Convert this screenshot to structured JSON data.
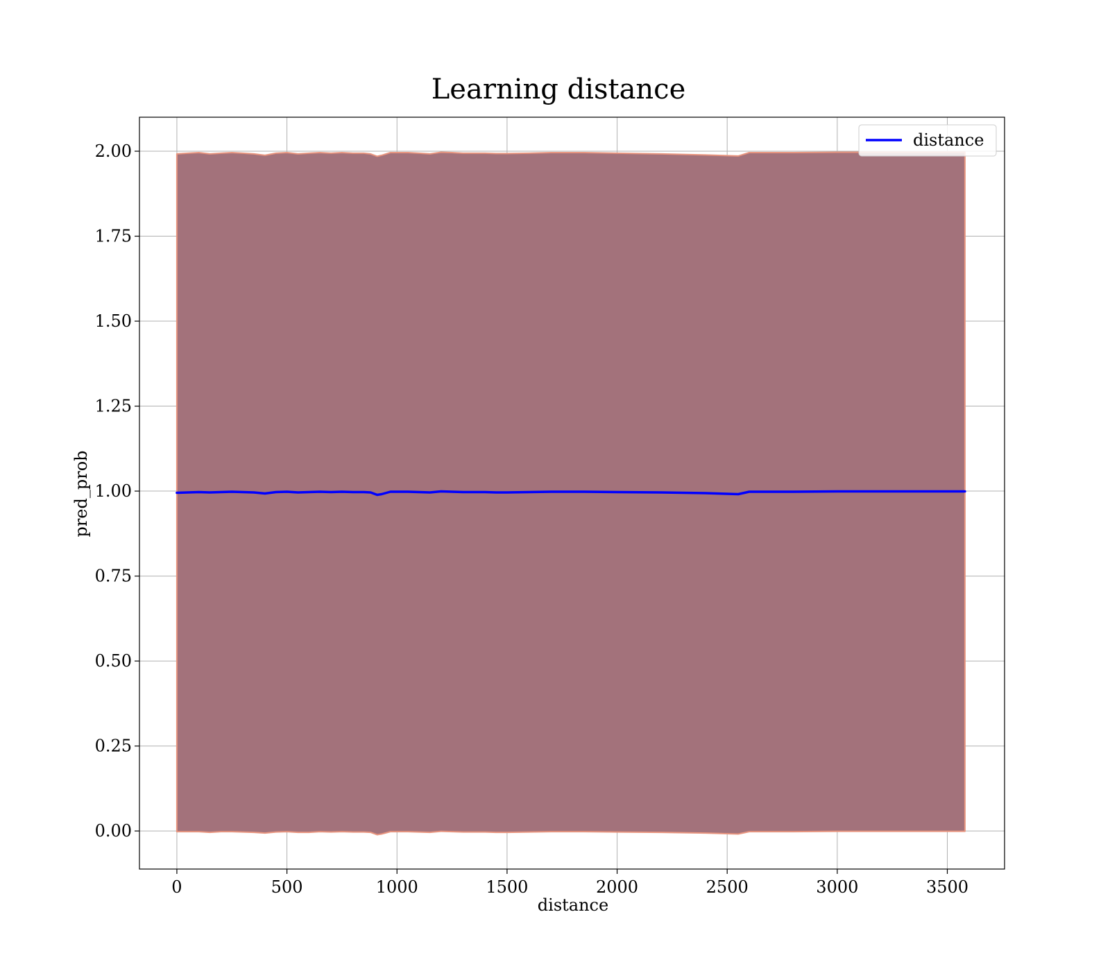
{
  "chart_data": {
    "type": "line",
    "title": "Learning distance",
    "xlabel": "distance",
    "ylabel": "pred_prob",
    "xlim": [
      -170,
      3760
    ],
    "ylim": [
      -0.112,
      2.1
    ],
    "xticks": [
      0,
      500,
      1000,
      1500,
      2000,
      2500,
      3000,
      3500
    ],
    "xtick_labels": [
      "0",
      "500",
      "1000",
      "1500",
      "2000",
      "2500",
      "3000",
      "3500"
    ],
    "yticks": [
      0,
      0.25,
      0.5,
      0.75,
      1.0,
      1.25,
      1.5,
      1.75,
      2.0
    ],
    "ytick_labels": [
      "0.00",
      "0.25",
      "0.50",
      "0.75",
      "1.00",
      "1.25",
      "1.50",
      "1.75",
      "2.00"
    ],
    "grid": true,
    "legend": {
      "placement": "upper right",
      "entries": [
        "distance"
      ]
    },
    "colors": {
      "line": "#0000ff",
      "band_fill": "#a3727b",
      "band_edge": "#e8957f",
      "grid": "#b0b0b0",
      "axes": "#000000"
    },
    "series": [
      {
        "name": "distance",
        "x": [
          0,
          50,
          100,
          150,
          200,
          250,
          300,
          350,
          400,
          450,
          500,
          550,
          600,
          650,
          700,
          750,
          800,
          850,
          880,
          910,
          930,
          970,
          1000,
          1050,
          1100,
          1150,
          1200,
          1250,
          1300,
          1350,
          1400,
          1450,
          1500,
          1600,
          1700,
          1800,
          1850,
          2000,
          2200,
          2400,
          2550,
          2600,
          2800,
          3000,
          3200,
          3400,
          3580
        ],
        "y": [
          0.995,
          0.996,
          0.997,
          0.996,
          0.997,
          0.998,
          0.997,
          0.996,
          0.993,
          0.997,
          0.998,
          0.996,
          0.997,
          0.998,
          0.997,
          0.998,
          0.997,
          0.997,
          0.996,
          0.989,
          0.991,
          0.998,
          0.998,
          0.998,
          0.997,
          0.996,
          0.999,
          0.998,
          0.997,
          0.997,
          0.997,
          0.996,
          0.996,
          0.997,
          0.998,
          0.998,
          0.998,
          0.997,
          0.996,
          0.994,
          0.991,
          0.998,
          0.998,
          0.999,
          0.999,
          0.999,
          0.999
        ],
        "band_lower": [
          -0.002,
          -0.002,
          -0.002,
          -0.004,
          -0.002,
          -0.002,
          -0.003,
          -0.004,
          -0.006,
          -0.003,
          -0.002,
          -0.004,
          -0.004,
          -0.002,
          -0.003,
          -0.002,
          -0.003,
          -0.003,
          -0.004,
          -0.011,
          -0.009,
          -0.002,
          -0.002,
          -0.002,
          -0.003,
          -0.004,
          -0.001,
          -0.002,
          -0.003,
          -0.003,
          -0.003,
          -0.004,
          -0.004,
          -0.003,
          -0.002,
          -0.002,
          -0.002,
          -0.003,
          -0.004,
          -0.006,
          -0.009,
          -0.002,
          -0.002,
          -0.001,
          -0.001,
          -0.001,
          -0.001
        ],
        "band_upper": [
          1.992,
          1.994,
          1.996,
          1.992,
          1.994,
          1.996,
          1.994,
          1.992,
          1.988,
          1.994,
          1.996,
          1.992,
          1.994,
          1.996,
          1.994,
          1.996,
          1.994,
          1.994,
          1.992,
          1.985,
          1.988,
          1.996,
          1.996,
          1.996,
          1.994,
          1.992,
          1.997,
          1.996,
          1.994,
          1.994,
          1.994,
          1.993,
          1.993,
          1.994,
          1.996,
          1.996,
          1.996,
          1.994,
          1.992,
          1.989,
          1.986,
          1.996,
          1.996,
          1.997,
          1.997,
          1.997,
          1.997
        ]
      }
    ]
  }
}
